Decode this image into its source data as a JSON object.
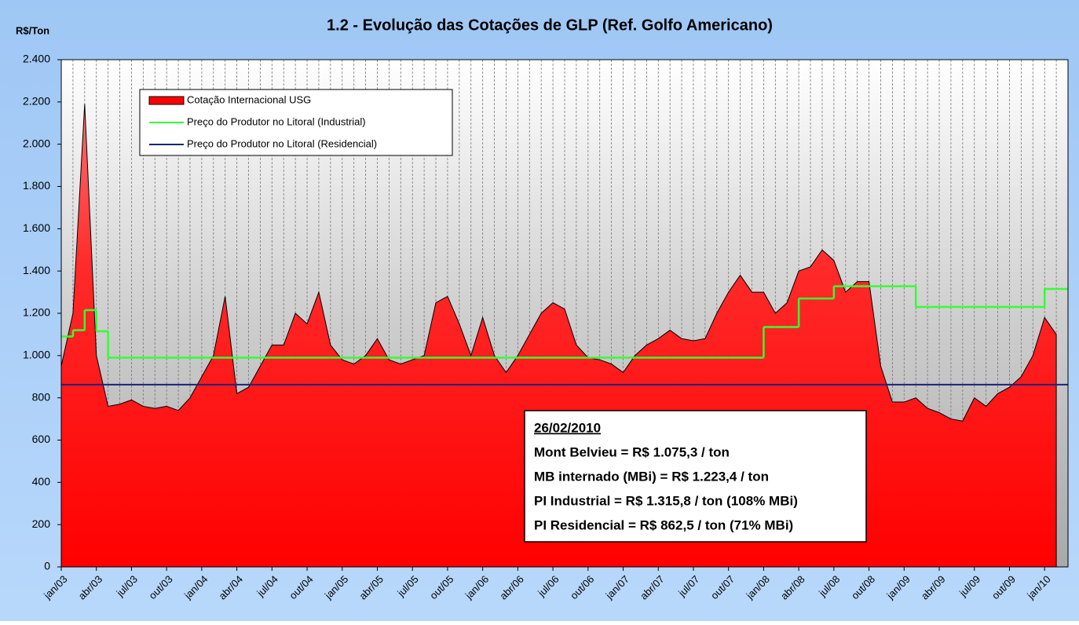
{
  "chart_data": {
    "type": "area",
    "title": "1.2 - Evolução das Cotações de GLP (Ref. Golfo Americano)",
    "y_label": "R$/Ton",
    "x": [
      "jan/03",
      "fev/03",
      "mar/03",
      "abr/03",
      "mai/03",
      "jun/03",
      "jul/03",
      "ago/03",
      "set/03",
      "out/03",
      "nov/03",
      "dez/03",
      "jan/04",
      "fev/04",
      "mar/04",
      "abr/04",
      "mai/04",
      "jun/04",
      "jul/04",
      "ago/04",
      "set/04",
      "out/04",
      "nov/04",
      "dez/04",
      "jan/05",
      "fev/05",
      "mar/05",
      "abr/05",
      "mai/05",
      "jun/05",
      "jul/05",
      "ago/05",
      "set/05",
      "out/05",
      "nov/05",
      "dez/05",
      "jan/06",
      "fev/06",
      "mar/06",
      "abr/06",
      "mai/06",
      "jun/06",
      "jul/06",
      "ago/06",
      "set/06",
      "out/06",
      "nov/06",
      "dez/06",
      "jan/07",
      "fev/07",
      "mar/07",
      "abr/07",
      "mai/07",
      "jun/07",
      "jul/07",
      "ago/07",
      "set/07",
      "out/07",
      "nov/07",
      "dez/07",
      "jan/08",
      "fev/08",
      "mar/08",
      "abr/08",
      "mai/08",
      "jun/08",
      "jul/08",
      "ago/08",
      "set/08",
      "out/08",
      "nov/08",
      "dez/08",
      "jan/09",
      "fev/09",
      "mar/09",
      "abr/09",
      "mai/09",
      "jun/09",
      "jul/09",
      "ago/09",
      "set/09",
      "out/09",
      "nov/09",
      "dez/09",
      "jan/10",
      "fev/10"
    ],
    "xticks": [
      "jan/03",
      "abr/03",
      "jul/03",
      "out/03",
      "jan/04",
      "abr/04",
      "jul/04",
      "out/04",
      "jan/05",
      "abr/05",
      "jul/05",
      "out/05",
      "jan/06",
      "abr/06",
      "jul/06",
      "out/06",
      "jan/07",
      "abr/07",
      "jul/07",
      "out/07",
      "jan/08",
      "abr/08",
      "jul/08",
      "out/08",
      "jan/09",
      "abr/09",
      "jul/09",
      "out/09",
      "jan/10"
    ],
    "series": [
      {
        "name": "Cotação Internacional USG",
        "color": "#ff0000",
        "values": [
          950,
          1200,
          2190,
          1000,
          760,
          770,
          790,
          760,
          750,
          760,
          740,
          800,
          900,
          1000,
          1280,
          820,
          850,
          950,
          1050,
          1050,
          1200,
          1150,
          1300,
          1050,
          980,
          960,
          1000,
          1080,
          980,
          960,
          980,
          1000,
          1250,
          1280,
          1150,
          1000,
          1180,
          1000,
          920,
          1000,
          1100,
          1200,
          1250,
          1220,
          1050,
          990,
          980,
          960,
          920,
          1000,
          1050,
          1080,
          1120,
          1080,
          1070,
          1080,
          1200,
          1300,
          1380,
          1300,
          1300,
          1200,
          1250,
          1400,
          1420,
          1500,
          1450,
          1300,
          1350,
          1350,
          950,
          780,
          780,
          800,
          750,
          730,
          700,
          690,
          800,
          760,
          820,
          850,
          900,
          1000,
          1180,
          1100
        ]
      },
      {
        "name": "Preço do Produtor no Litoral (Industrial)",
        "color": "#33ff33",
        "values": [
          1090,
          1120,
          1215,
          1115,
          990,
          990,
          990,
          990,
          990,
          990,
          990,
          990,
          990,
          990,
          990,
          990,
          990,
          990,
          990,
          990,
          990,
          990,
          990,
          990,
          990,
          990,
          990,
          990,
          990,
          990,
          990,
          990,
          990,
          990,
          990,
          990,
          990,
          990,
          990,
          990,
          990,
          990,
          990,
          990,
          990,
          990,
          990,
          990,
          990,
          990,
          990,
          990,
          990,
          990,
          990,
          990,
          990,
          990,
          990,
          990,
          1135,
          1135,
          1135,
          1270,
          1270,
          1270,
          1328,
          1328,
          1328,
          1328,
          1328,
          1328,
          1328,
          1230,
          1230,
          1230,
          1230,
          1230,
          1230,
          1230,
          1230,
          1230,
          1230,
          1230,
          1315,
          1315
        ]
      },
      {
        "name": "Preço do Produtor no Litoral (Residencial)",
        "color": "#1a237e",
        "values": [
          862.5,
          862.5,
          862.5,
          862.5,
          862.5,
          862.5,
          862.5,
          862.5,
          862.5,
          862.5,
          862.5,
          862.5,
          862.5,
          862.5,
          862.5,
          862.5,
          862.5,
          862.5,
          862.5,
          862.5,
          862.5,
          862.5,
          862.5,
          862.5,
          862.5,
          862.5,
          862.5,
          862.5,
          862.5,
          862.5,
          862.5,
          862.5,
          862.5,
          862.5,
          862.5,
          862.5,
          862.5,
          862.5,
          862.5,
          862.5,
          862.5,
          862.5,
          862.5,
          862.5,
          862.5,
          862.5,
          862.5,
          862.5,
          862.5,
          862.5,
          862.5,
          862.5,
          862.5,
          862.5,
          862.5,
          862.5,
          862.5,
          862.5,
          862.5,
          862.5,
          862.5,
          862.5,
          862.5,
          862.5,
          862.5,
          862.5,
          862.5,
          862.5,
          862.5,
          862.5,
          862.5,
          862.5,
          862.5,
          862.5,
          862.5,
          862.5,
          862.5,
          862.5,
          862.5,
          862.5,
          862.5,
          862.5,
          862.5,
          862.5,
          862.5,
          862.5
        ]
      }
    ],
    "ylim": [
      0,
      2400
    ],
    "yticks": [
      0,
      200,
      400,
      600,
      800,
      {
        "value": 1000,
        "label": "1.000"
      },
      {
        "value": 1200,
        "label": "1.200"
      },
      {
        "value": 1400,
        "label": "1.400"
      },
      {
        "value": 1600,
        "label": "1.600"
      },
      {
        "value": 1800,
        "label": "1.800"
      },
      {
        "value": 2000,
        "label": "2.000"
      },
      {
        "value": 2200,
        "label": "2.200"
      },
      {
        "value": 2400,
        "label": "2.400"
      }
    ],
    "grid": true,
    "legend": "top-left",
    "annotations": [
      "26/02/2010",
      "Mont Belvieu = R$ 1.075,3 / ton",
      "MB internado (MBi) = R$ 1.223,4 / ton",
      "PI Industrial = R$ 1.315,8 / ton (108% MBi)",
      "PI Residencial = R$ 862,5 / ton (71% MBi)"
    ]
  }
}
